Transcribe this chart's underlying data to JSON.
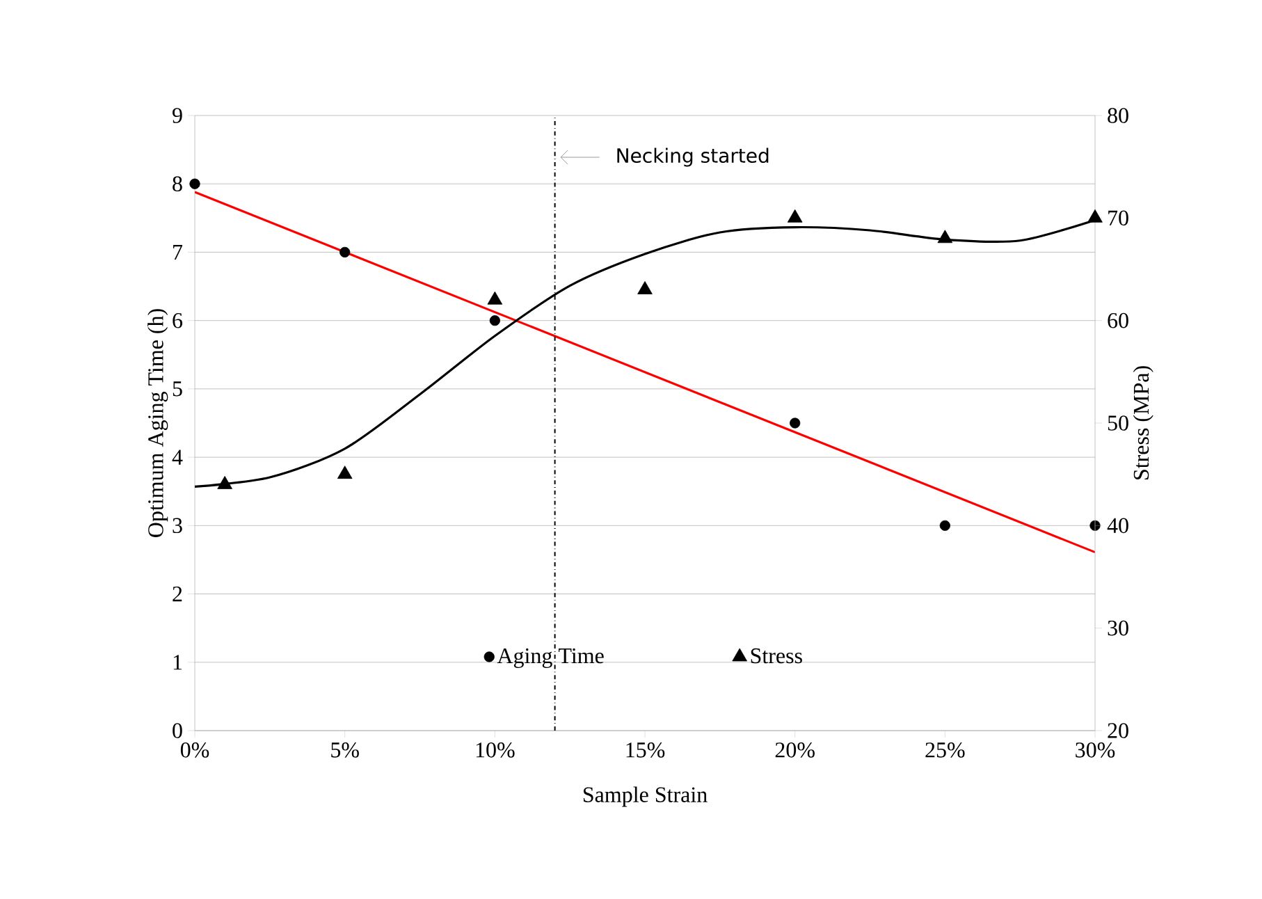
{
  "chart_data": {
    "type": "scatter",
    "xlabel": "Sample Strain",
    "ylabel": "Optimum Aging Time (h)",
    "y2label": "Stress (MPa)",
    "xlim": [
      0,
      30
    ],
    "xticks": [
      {
        "value": 0,
        "label": "0%"
      },
      {
        "value": 5,
        "label": "5%"
      },
      {
        "value": 10,
        "label": "10%"
      },
      {
        "value": 15,
        "label": "15%"
      },
      {
        "value": 20,
        "label": "20%"
      },
      {
        "value": 25,
        "label": "25%"
      },
      {
        "value": 30,
        "label": "30%"
      }
    ],
    "ylim": [
      0,
      9
    ],
    "yticks": [
      0,
      1,
      2,
      3,
      4,
      5,
      6,
      7,
      8,
      9
    ],
    "y2lim": [
      20,
      80
    ],
    "y2ticks": [
      20,
      30,
      40,
      50,
      60,
      70,
      80
    ],
    "grid": "y",
    "legend": "bottom",
    "series": [
      {
        "name": "Aging Time",
        "marker": "circle",
        "color": "#000000",
        "x": [
          0,
          5,
          10,
          20,
          25,
          30
        ],
        "values": [
          8,
          7,
          6,
          4.5,
          3,
          3
        ]
      },
      {
        "name": "Stress",
        "marker": "triangle",
        "color": "#000000",
        "axis": "y2",
        "x": [
          1,
          5,
          10,
          15,
          20,
          25,
          30
        ],
        "values": [
          44,
          45,
          62,
          63,
          70,
          68,
          70
        ]
      },
      {
        "type": "line",
        "color": "#ff0000",
        "x": [
          0,
          30
        ],
        "values": [
          7.88,
          2.61
        ]
      },
      {
        "type": "line",
        "color": "#000000",
        "axis": "y2",
        "x": [
          0,
          2.5,
          5,
          7.5,
          10,
          12.5,
          15,
          17.5,
          20,
          22.5,
          25,
          27.5,
          30
        ],
        "values": [
          43.8,
          44.7,
          47.5,
          52.8,
          58.5,
          63.4,
          66.5,
          68.6,
          69.1,
          68.8,
          67.9,
          67.8,
          69.8
        ]
      }
    ],
    "ref_lines": [
      {
        "axis": "x",
        "value": 12,
        "label": "Necking started",
        "line_style": "dashdot",
        "color": "#000000"
      }
    ]
  }
}
